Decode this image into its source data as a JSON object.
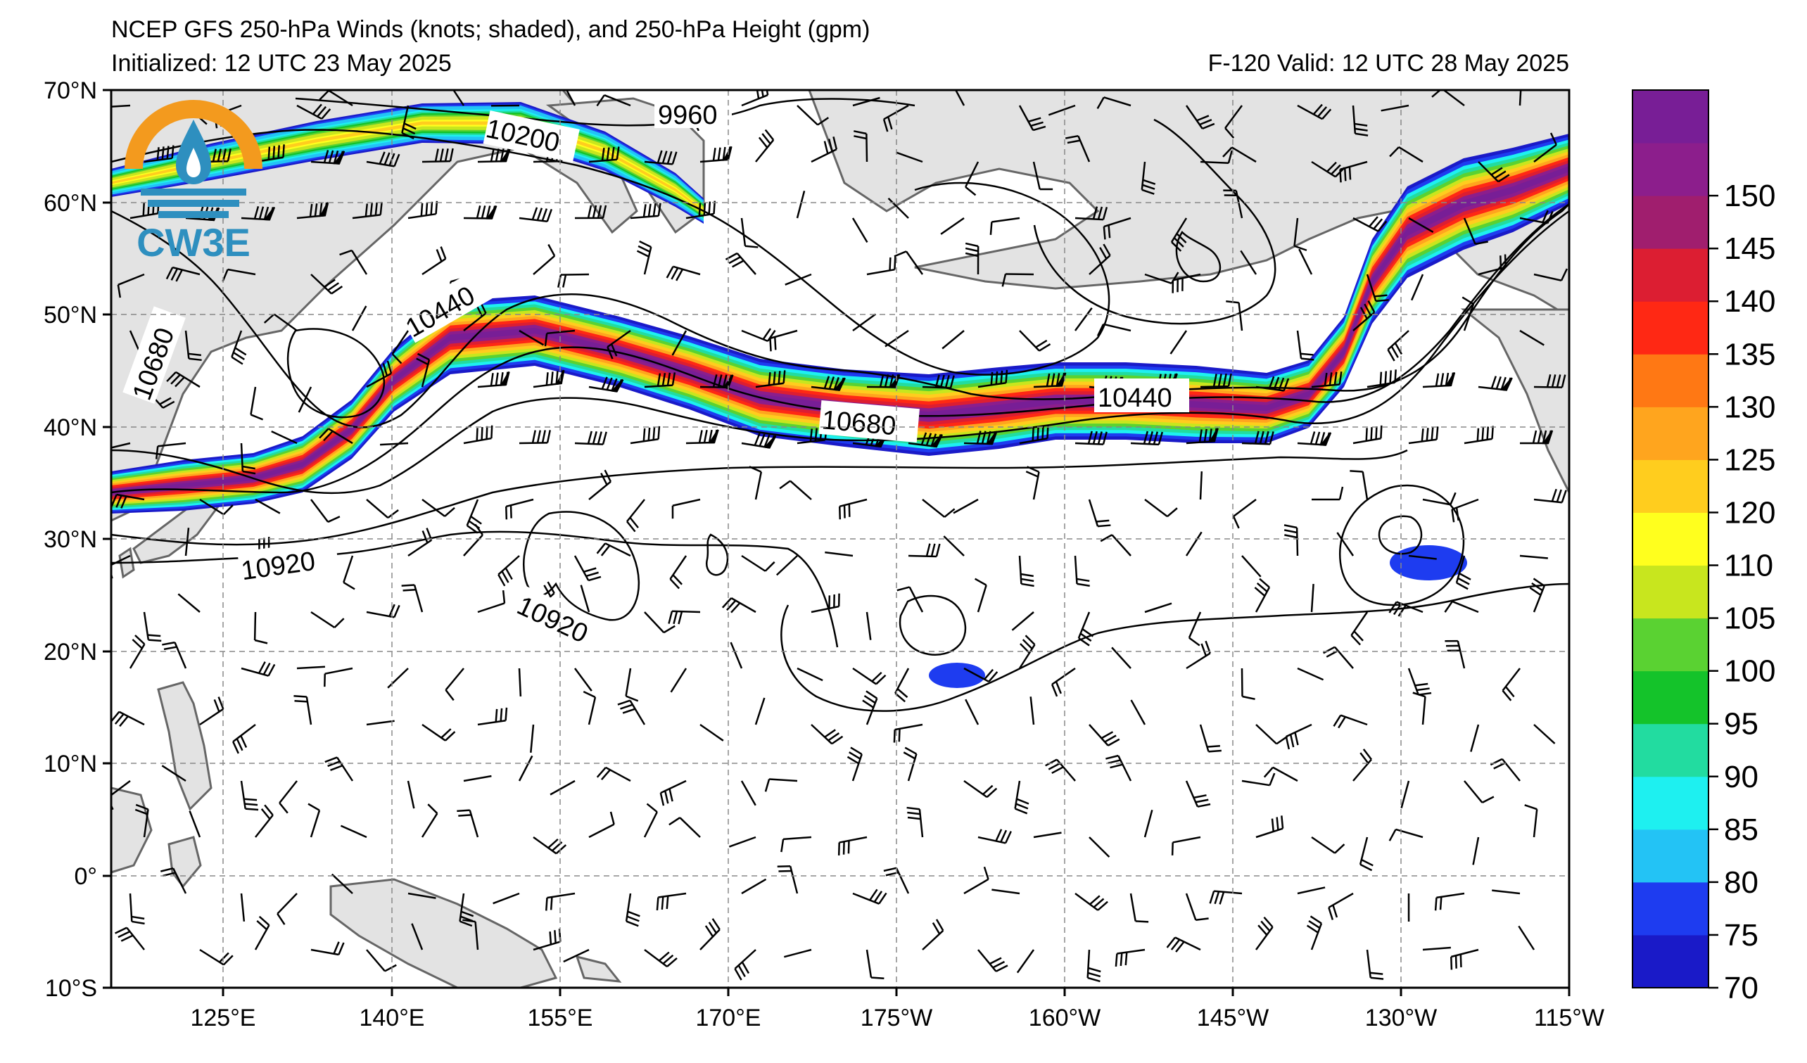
{
  "title_line1": "NCEP GFS 250-hPa Winds (knots; shaded), and 250-hPa Height (gpm)",
  "title_init": "Initialized: 12 UTC 23 May 2025",
  "title_valid": "F-120  Valid: 12 UTC 28 May 2025",
  "logo_text": "CW3E",
  "lat_labels": [
    "70°N",
    "60°N",
    "50°N",
    "40°N",
    "30°N",
    "20°N",
    "10°N",
    "0°",
    "10°S"
  ],
  "lon_labels": [
    "125°E",
    "140°E",
    "155°E",
    "170°E",
    "175°W",
    "160°W",
    "145°W",
    "130°W",
    "115°W"
  ],
  "colorbar": {
    "ticks": [
      "70",
      "75",
      "80",
      "85",
      "90",
      "95",
      "100",
      "105",
      "110",
      "120",
      "125",
      "130",
      "135",
      "140",
      "145",
      "150"
    ],
    "colors": [
      "#1a1ac8",
      "#1e3cf0",
      "#23c3f5",
      "#1ef0f0",
      "#22dca0",
      "#14c32a",
      "#5ad232",
      "#c8e61e",
      "#ffff1e",
      "#ffcd1e",
      "#ffa51e",
      "#ff7814",
      "#ff2814",
      "#dc1e32",
      "#a01e6e",
      "#8c1e8c",
      "#781e96"
    ]
  },
  "contour_labels": [
    "9960",
    "10200",
    "10440",
    "10680",
    "10440",
    "10680",
    "10920",
    "10920"
  ],
  "colors": {
    "land": "#e3e3e3",
    "coast": "#666666",
    "grid": "#888888"
  }
}
